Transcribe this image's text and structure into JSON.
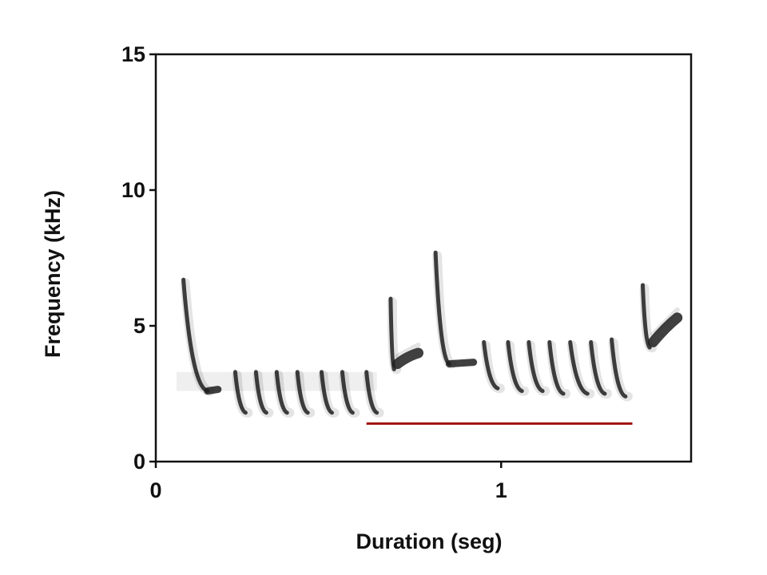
{
  "chart_data": {
    "type": "spectrogram",
    "title": "",
    "xlabel": "Duration (seg)",
    "ylabel": "Frequency (kHz)",
    "xlim": [
      0,
      1.55
    ],
    "ylim": [
      0,
      15
    ],
    "xticks": [
      0,
      1
    ],
    "yticks": [
      0,
      5,
      10,
      15
    ],
    "grid": false,
    "ink_color": "#1e1e1e",
    "annotation": {
      "type": "horizontal-line",
      "color": "#a01010",
      "x_start": 0.61,
      "x_end": 1.38,
      "y": 1.4
    },
    "elements": [
      {
        "kind": "downsweep",
        "x_start": 0.08,
        "x_end": 0.15,
        "f_start": 6.7,
        "f_end": 2.6,
        "tail_to": 0.18
      },
      {
        "kind": "downsweep",
        "x_start": 0.23,
        "x_end": 0.26,
        "f_start": 3.3,
        "f_end": 1.8
      },
      {
        "kind": "downsweep",
        "x_start": 0.29,
        "x_end": 0.32,
        "f_start": 3.3,
        "f_end": 1.8
      },
      {
        "kind": "downsweep",
        "x_start": 0.35,
        "x_end": 0.38,
        "f_start": 3.3,
        "f_end": 1.8
      },
      {
        "kind": "downsweep",
        "x_start": 0.41,
        "x_end": 0.44,
        "f_start": 3.3,
        "f_end": 1.8
      },
      {
        "kind": "downsweep",
        "x_start": 0.48,
        "x_end": 0.51,
        "f_start": 3.3,
        "f_end": 1.8
      },
      {
        "kind": "downsweep",
        "x_start": 0.54,
        "x_end": 0.57,
        "f_start": 3.3,
        "f_end": 1.8
      },
      {
        "kind": "downsweep",
        "x_start": 0.61,
        "x_end": 0.64,
        "f_start": 3.3,
        "f_end": 1.8
      },
      {
        "kind": "downsweep",
        "x_start": 0.68,
        "x_end": 0.69,
        "f_start": 6.0,
        "f_end": 3.4
      },
      {
        "kind": "note",
        "x_start": 0.7,
        "x_end": 0.76,
        "f_start": 3.6,
        "f_end": 4.0
      },
      {
        "kind": "downsweep",
        "x_start": 0.81,
        "x_end": 0.85,
        "f_start": 7.7,
        "f_end": 3.6,
        "tail_to": 0.92
      },
      {
        "kind": "downsweep",
        "x_start": 0.95,
        "x_end": 0.99,
        "f_start": 4.4,
        "f_end": 2.7
      },
      {
        "kind": "downsweep",
        "x_start": 1.02,
        "x_end": 1.06,
        "f_start": 4.4,
        "f_end": 2.6
      },
      {
        "kind": "downsweep",
        "x_start": 1.08,
        "x_end": 1.12,
        "f_start": 4.4,
        "f_end": 2.6
      },
      {
        "kind": "downsweep",
        "x_start": 1.14,
        "x_end": 1.18,
        "f_start": 4.4,
        "f_end": 2.5
      },
      {
        "kind": "downsweep",
        "x_start": 1.2,
        "x_end": 1.25,
        "f_start": 4.4,
        "f_end": 2.5
      },
      {
        "kind": "downsweep",
        "x_start": 1.26,
        "x_end": 1.3,
        "f_start": 4.4,
        "f_end": 2.5
      },
      {
        "kind": "downsweep",
        "x_start": 1.32,
        "x_end": 1.36,
        "f_start": 4.5,
        "f_end": 2.4
      },
      {
        "kind": "downsweep",
        "x_start": 1.41,
        "x_end": 1.43,
        "f_start": 6.5,
        "f_end": 4.2
      },
      {
        "kind": "note",
        "x_start": 1.44,
        "x_end": 1.51,
        "f_start": 4.4,
        "f_end": 5.3
      }
    ]
  }
}
